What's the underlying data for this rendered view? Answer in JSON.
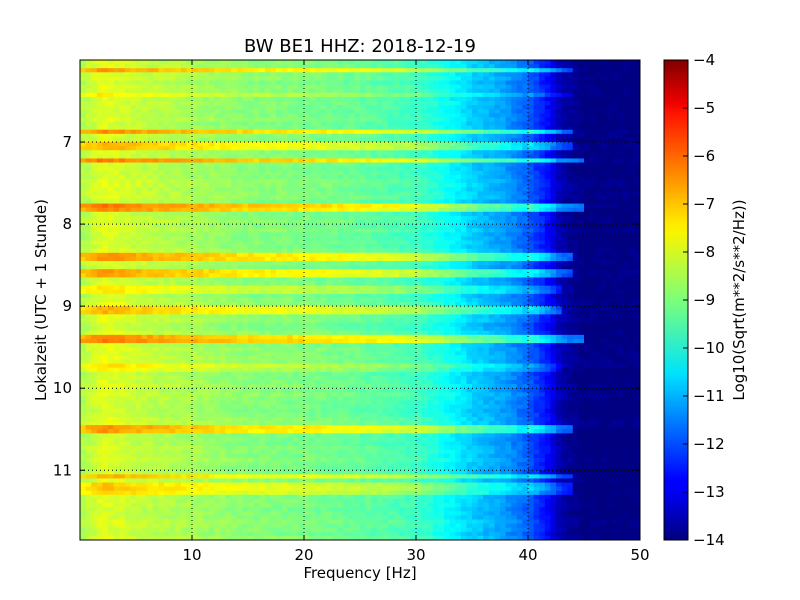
{
  "chart_data": {
    "type": "heatmap",
    "title": "BW BE1 HHZ: 2018-12-19",
    "xlabel": "Frequency [Hz]",
    "ylabel": "Lokalzeit (UTC + 1 Stunde)",
    "colorbar_label": "Log10(Sqrt(m**2/s**2/Hz))",
    "colormap": "jet",
    "xlim": [
      0,
      50
    ],
    "ylim": [
      11.85,
      6.0
    ],
    "y_inverted": true,
    "clim": [
      -14,
      -4
    ],
    "x_ticks": [
      10,
      20,
      30,
      40,
      50
    ],
    "x_tick_labels": [
      "10",
      "20",
      "30",
      "40",
      "50"
    ],
    "y_ticks": [
      7,
      8,
      9,
      10,
      11
    ],
    "y_tick_labels": [
      "7",
      "8",
      "9",
      "10",
      "11"
    ],
    "colorbar_ticks": [
      -4,
      -5,
      -6,
      -7,
      -8,
      -9,
      -10,
      -11,
      -12,
      -13,
      -14
    ],
    "colorbar_tick_labels": [
      "−4",
      "−5",
      "−6",
      "−7",
      "−8",
      "−9",
      "−10",
      "−11",
      "−12",
      "−13",
      "−14"
    ],
    "grid": true,
    "grid_style": "dotted",
    "spectrum_profile": {
      "frequency_hz": [
        0,
        2,
        5,
        10,
        15,
        20,
        25,
        30,
        33,
        35,
        38,
        40,
        42,
        43,
        45,
        50
      ],
      "log10_amplitude": [
        -8.6,
        -8.0,
        -8.3,
        -8.6,
        -8.9,
        -9.0,
        -9.25,
        -9.6,
        -10.2,
        -10.7,
        -11.2,
        -11.8,
        -12.8,
        -13.6,
        -14.0,
        -14.0
      ]
    },
    "bright_bands": [
      {
        "time": 6.12,
        "delta": 1.3,
        "fmax": 44
      },
      {
        "time": 6.42,
        "delta": 0.5,
        "fmax": 44
      },
      {
        "time": 6.87,
        "delta": 1.4,
        "fmax": 44
      },
      {
        "time": 7.04,
        "delta": 1.0,
        "fmax": 44
      },
      {
        "time": 7.22,
        "delta": 1.5,
        "fmax": 45
      },
      {
        "time": 7.8,
        "delta": 1.6,
        "fmax": 45
      },
      {
        "time": 8.4,
        "delta": 1.3,
        "fmax": 44
      },
      {
        "time": 8.59,
        "delta": 1.2,
        "fmax": 44
      },
      {
        "time": 8.8,
        "delta": 0.6,
        "fmax": 43
      },
      {
        "time": 9.04,
        "delta": 1.0,
        "fmax": 43
      },
      {
        "time": 9.39,
        "delta": 1.6,
        "fmax": 45
      },
      {
        "time": 9.76,
        "delta": 0.5,
        "fmax": 43
      },
      {
        "time": 10.5,
        "delta": 1.4,
        "fmax": 44
      },
      {
        "time": 11.08,
        "delta": 1.2,
        "fmax": 44
      },
      {
        "time": 11.19,
        "delta": 1.0,
        "fmax": 44
      },
      {
        "time": 11.28,
        "delta": 0.8,
        "fmax": 44
      }
    ]
  }
}
